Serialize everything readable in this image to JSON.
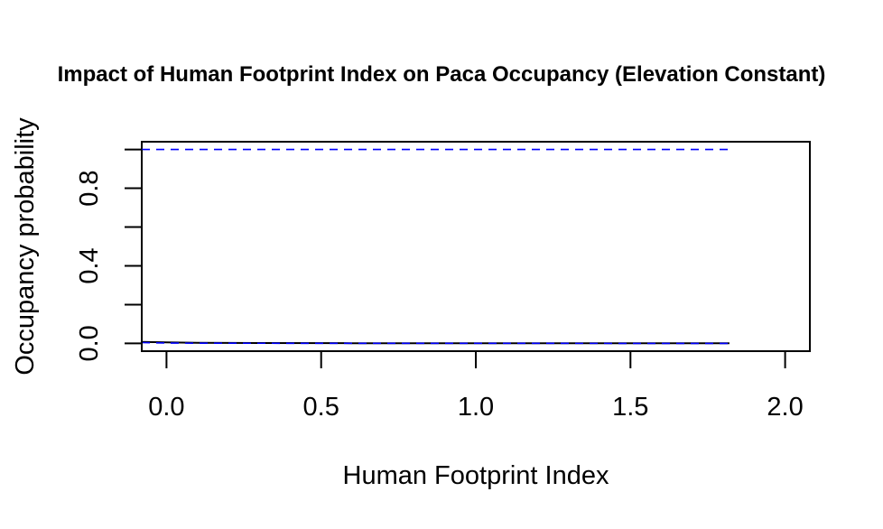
{
  "chart_data": {
    "type": "line",
    "title": "Impact of Human Footprint Index on Paca Occupancy (Elevation Constant)",
    "xlabel": "Human Footprint Index",
    "ylabel": "Occupancy probability",
    "xlim": [
      -0.08,
      2.08
    ],
    "ylim": [
      -0.04,
      1.04
    ],
    "x_ticks": [
      0.0,
      0.5,
      1.0,
      1.5,
      2.0
    ],
    "x_tick_labels": [
      "0.0",
      "0.5",
      "1.0",
      "1.5",
      "2.0"
    ],
    "y_ticks": [
      0.0,
      0.2,
      0.4,
      0.6,
      0.8,
      1.0
    ],
    "y_tick_labels": [
      "0.0",
      "",
      "0.4",
      "",
      "0.8",
      ""
    ],
    "grid": false,
    "legend": "none",
    "series": [
      {
        "role": "estimate",
        "color": "#000000",
        "style": "solid",
        "x": [
          -0.08,
          0.0,
          0.1,
          0.3,
          0.6,
          1.0,
          1.4,
          1.82
        ],
        "y": [
          0.008,
          0.005,
          0.003,
          0.002,
          0.001,
          0.0008,
          0.0005,
          0.0004
        ]
      },
      {
        "role": "upper-ci",
        "color": "#0000ff",
        "style": "dashed",
        "x": [
          -0.08,
          0.5,
          1.0,
          1.5,
          1.82
        ],
        "y": [
          1.0,
          1.0,
          1.0,
          1.0,
          1.0
        ]
      },
      {
        "role": "lower-ci",
        "color": "#0000ff",
        "style": "dashed",
        "x": [
          -0.08,
          0.0,
          0.1,
          0.5,
          1.0,
          1.5,
          1.82
        ],
        "y": [
          0.004,
          0.002,
          0.001,
          0.0005,
          0.0003,
          0.0002,
          0.0001
        ]
      }
    ]
  }
}
